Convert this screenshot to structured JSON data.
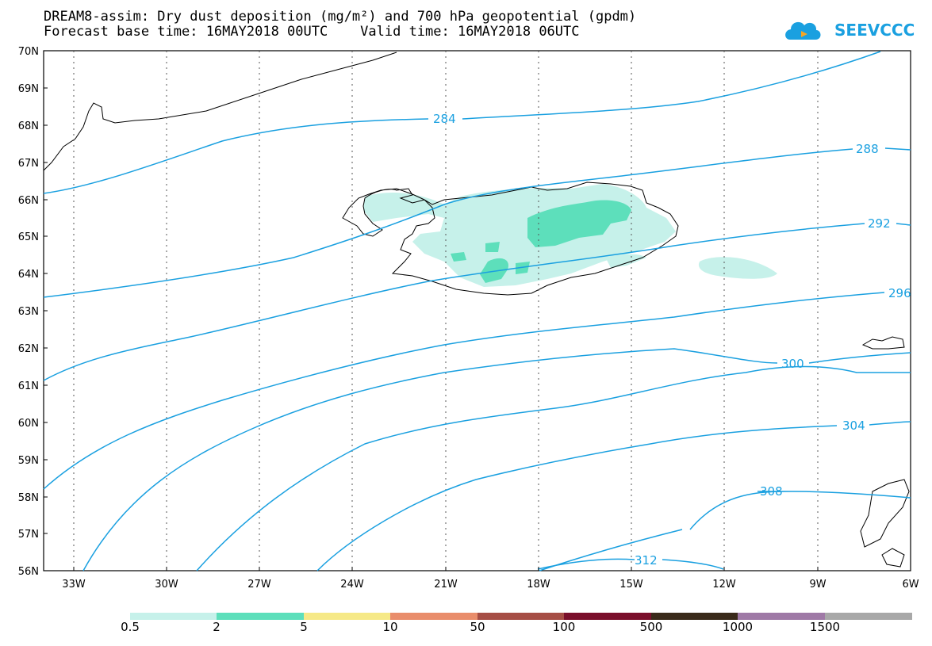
{
  "title_line1": "DREAM8-assim: Dry dust deposition (mg/m²) and 700 hPa geopotential (gpdm)",
  "title_line2": "Forecast base time: 16MAY2018 00UTC    Valid time: 16MAY2018 06UTC",
  "logo_text": "SEEVCCC",
  "map": {
    "lat_labels": [
      "70N",
      "69N",
      "68N",
      "67N",
      "66N",
      "65N",
      "64N",
      "63N",
      "62N",
      "61N",
      "60N",
      "59N",
      "58N",
      "57N",
      "56N"
    ],
    "lon_labels": [
      "33W",
      "30W",
      "27W",
      "24W",
      "21W",
      "18W",
      "15W",
      "12W",
      "9W",
      "6W"
    ],
    "contour_color": "#1aa0e0",
    "contour_labels": [
      "284",
      "288",
      "292",
      "296",
      "300",
      "304",
      "308",
      "312"
    ]
  },
  "legend": {
    "labels": [
      "0.5",
      "2",
      "5",
      "10",
      "50",
      "100",
      "500",
      "1000",
      "1500"
    ],
    "colors": [
      "#c6f1ea",
      "#5ddfbb",
      "#f6e987",
      "#e98d6b",
      "#a64e45",
      "#7a0f2b",
      "#3a2a1a",
      "#9f79a6",
      "#a8a8a8"
    ]
  }
}
